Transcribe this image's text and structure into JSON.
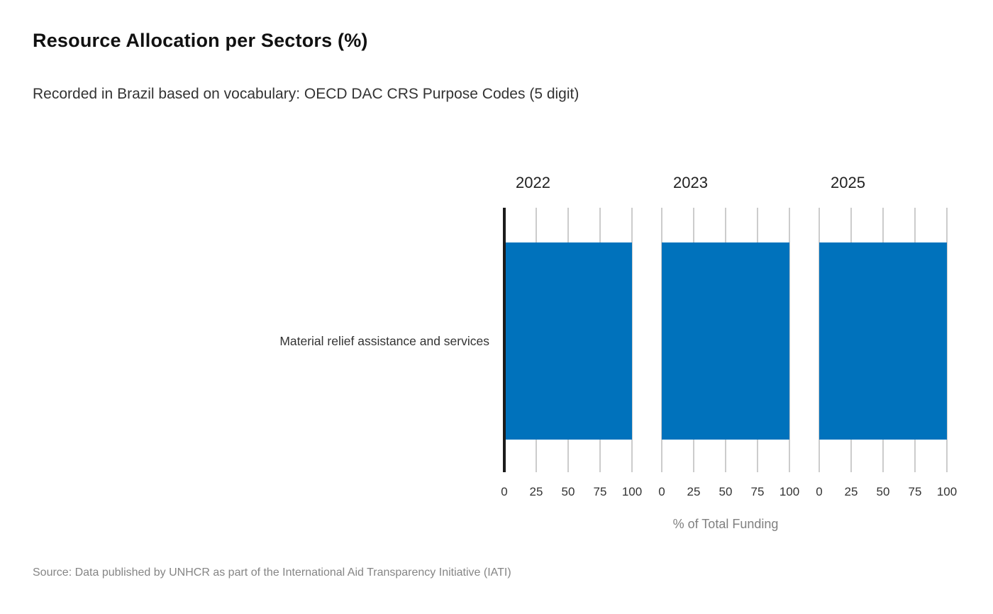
{
  "header": {
    "title": "Resource Allocation per Sectors (%)",
    "subtitle": "Recorded in Brazil based on vocabulary: OECD DAC CRS Purpose Codes (5 digit)"
  },
  "chart_data": {
    "type": "bar",
    "orientation": "horizontal",
    "facet_by": "year",
    "categories": [
      "Material relief assistance and services"
    ],
    "series": [
      {
        "name": "2022",
        "values": [
          100
        ]
      },
      {
        "name": "2023",
        "values": [
          100
        ]
      },
      {
        "name": "2025",
        "values": [
          100
        ]
      }
    ],
    "xlabel": "% of Total Funding",
    "xticks": [
      0,
      25,
      50,
      75,
      100
    ],
    "xlim": [
      0,
      100
    ],
    "grid": true,
    "legend": "none",
    "bar_color": "#0072BC"
  },
  "footer": {
    "source": "Source: Data published by UNHCR as part of the International Aid Transparency Initiative (IATI)"
  },
  "colors": {
    "bar": "#0072BC",
    "axis_line": "#1c1c1c",
    "gridline": "#cccccc",
    "title_text": "#111111",
    "body_text": "#333333",
    "muted_text": "#808080"
  }
}
